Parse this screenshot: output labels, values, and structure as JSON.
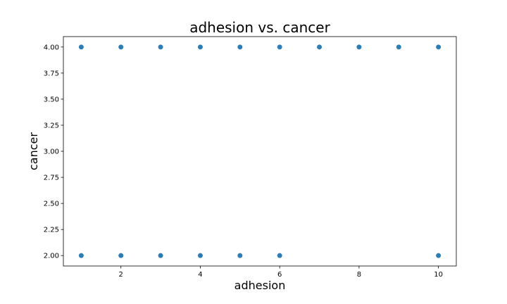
{
  "chart_data": {
    "type": "scatter",
    "title": "adhesion vs. cancer",
    "xlabel": "adhesion",
    "ylabel": "cancer",
    "xlim": [
      0.55,
      10.45
    ],
    "ylim": [
      1.9,
      4.1
    ],
    "xticks": [
      2,
      4,
      6,
      8,
      10
    ],
    "xtick_labels": [
      "2",
      "4",
      "6",
      "8",
      "10"
    ],
    "yticks": [
      2.0,
      2.25,
      2.5,
      2.75,
      3.0,
      3.25,
      3.5,
      3.75,
      4.0
    ],
    "ytick_labels": [
      "2.00",
      "2.25",
      "2.50",
      "2.75",
      "3.00",
      "3.25",
      "3.50",
      "3.75",
      "4.00"
    ],
    "grid": false,
    "marker_color": "#1f77b4",
    "points": [
      {
        "x": 1,
        "y": 2
      },
      {
        "x": 2,
        "y": 2
      },
      {
        "x": 3,
        "y": 2
      },
      {
        "x": 4,
        "y": 2
      },
      {
        "x": 5,
        "y": 2
      },
      {
        "x": 6,
        "y": 2
      },
      {
        "x": 10,
        "y": 2
      },
      {
        "x": 1,
        "y": 4
      },
      {
        "x": 2,
        "y": 4
      },
      {
        "x": 3,
        "y": 4
      },
      {
        "x": 4,
        "y": 4
      },
      {
        "x": 5,
        "y": 4
      },
      {
        "x": 6,
        "y": 4
      },
      {
        "x": 7,
        "y": 4
      },
      {
        "x": 8,
        "y": 4
      },
      {
        "x": 9,
        "y": 4
      },
      {
        "x": 10,
        "y": 4
      }
    ]
  }
}
